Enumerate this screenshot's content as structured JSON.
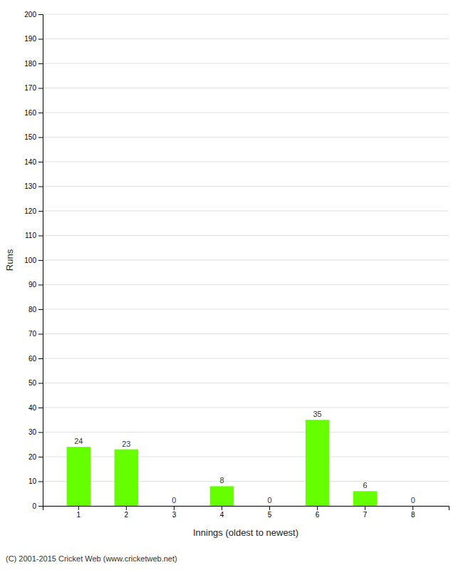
{
  "chart_data": {
    "type": "bar",
    "xlabel": "Innings (oldest to newest)",
    "ylabel": "Runs",
    "categories": [
      1,
      2,
      3,
      4,
      5,
      6,
      7,
      8
    ],
    "values": [
      24,
      23,
      0,
      8,
      0,
      35,
      6,
      0
    ],
    "color": "#66ff00",
    "ylim": [
      0,
      200
    ],
    "yticks": [
      0,
      10,
      20,
      30,
      40,
      50,
      60,
      70,
      80,
      90,
      100,
      110,
      120,
      130,
      140,
      150,
      160,
      170,
      180,
      190,
      200
    ],
    "grid": true,
    "data_labels": true,
    "annotations": [
      "(C) 2001-2015 Cricket Web (www.cricketweb.net)"
    ]
  }
}
